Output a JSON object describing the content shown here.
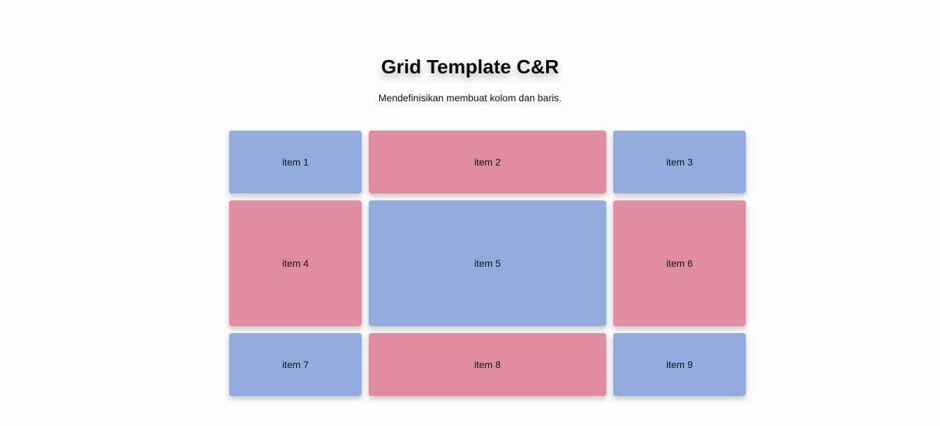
{
  "header": {
    "title": "Grid Template C&R",
    "subtitle": "Mendefinisikan membuat kolom dan baris."
  },
  "grid": {
    "items": [
      {
        "label": "item 1",
        "color": "#92acdf"
      },
      {
        "label": "item 2",
        "color": "#e18ca0"
      },
      {
        "label": "item 3",
        "color": "#92acdf"
      },
      {
        "label": "item 4",
        "color": "#e18ca0"
      },
      {
        "label": "item 5",
        "color": "#92acdf"
      },
      {
        "label": "item 6",
        "color": "#e18ca0"
      },
      {
        "label": "item 7",
        "color": "#92acdf"
      },
      {
        "label": "item 8",
        "color": "#e18ca0"
      },
      {
        "label": "item 9",
        "color": "#92acdf"
      }
    ]
  }
}
